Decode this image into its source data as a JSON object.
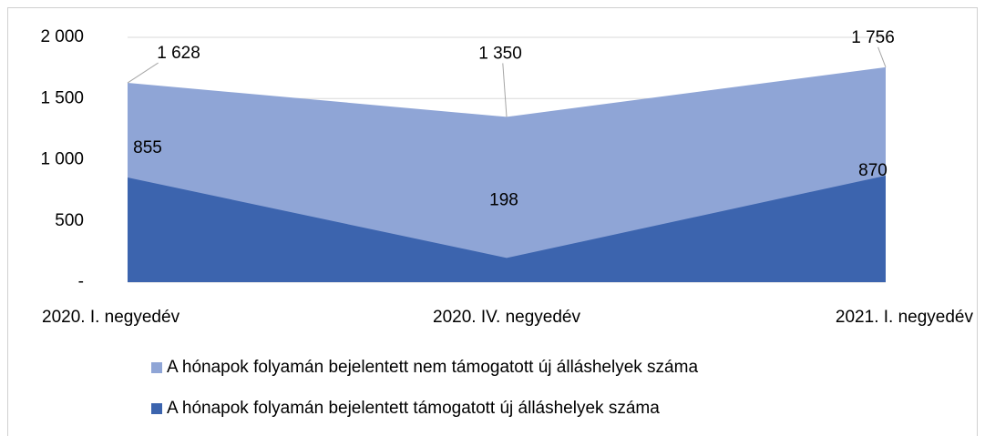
{
  "chart_data": {
    "type": "area",
    "categories": [
      "2020. I. negyedév",
      "2020. IV. negyedév",
      "2021. I. negyedév"
    ],
    "series": [
      {
        "name": "A hónapok folyamán bejelentett nem támogatott új álláshelyek száma",
        "color": "#8fa5d6",
        "values": [
          1628,
          1350,
          1756
        ],
        "value_labels": [
          "1 628",
          "1 350",
          "1 756"
        ]
      },
      {
        "name": "A hónapok folyamán bejelentett támogatott új álláshelyek száma",
        "color": "#3c64ae",
        "values": [
          855,
          198,
          870
        ],
        "value_labels": [
          "855",
          "198",
          "870"
        ]
      }
    ],
    "ylim": [
      0,
      2000
    ],
    "yticks": [
      {
        "value": 0,
        "label": "-"
      },
      500,
      {
        "value": 1000,
        "label": "1 000"
      },
      {
        "value": 1500,
        "label": "1 500"
      },
      {
        "value": 2000,
        "label": "2 000"
      }
    ],
    "grid": true,
    "legend": "bottom"
  }
}
